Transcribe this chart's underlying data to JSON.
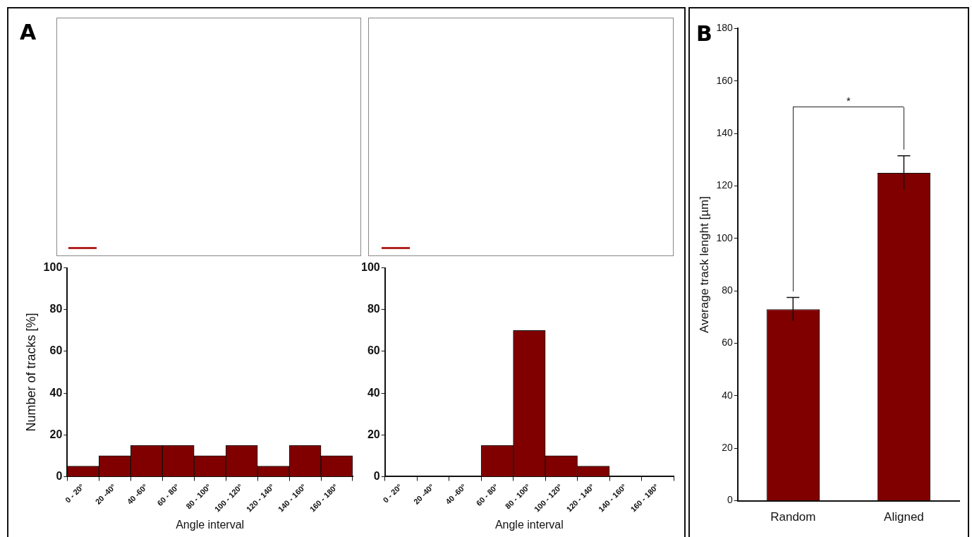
{
  "chart_data": [
    {
      "type": "bar",
      "annotations": [
        "A"
      ],
      "xlabel": "Angle interval",
      "ylabel": "Number of tracks [%]",
      "categories": [
        "0 - 20°",
        "20 -40°",
        "40 -60°",
        "60 - 80°",
        "80 - 100°",
        "100 - 120°",
        "120 - 140°",
        "140 - 160°",
        "160 - 180°"
      ],
      "values": [
        5,
        10,
        15,
        15,
        10,
        15,
        5,
        15,
        10
      ],
      "color": "#800000",
      "ylim": [
        0,
        100
      ],
      "yticks": [
        0,
        20,
        40,
        60,
        80,
        100
      ],
      "grid": false,
      "legend": false
    },
    {
      "type": "bar",
      "xlabel": "Angle interval",
      "categories": [
        "0 - 20°",
        "20 -40°",
        "40 -60°",
        "60 - 80°",
        "80 - 100°",
        "100 - 120°",
        "120 - 140°",
        "140 - 160°",
        "160 - 180°"
      ],
      "values": [
        0,
        0,
        0,
        15,
        70,
        10,
        5,
        0,
        0
      ],
      "color": "#800000",
      "ylim": [
        0,
        100
      ],
      "yticks": [
        0,
        20,
        40,
        60,
        80,
        100
      ],
      "grid": false,
      "legend": false
    },
    {
      "type": "bar",
      "annotations": [
        "B",
        "*"
      ],
      "ylabel": "Average track lenght [µm]",
      "categories": [
        "Random",
        "Aligned"
      ],
      "values": [
        73,
        125
      ],
      "errors": [
        4.5,
        6.5
      ],
      "color": "#800000",
      "ylim": [
        0,
        180
      ],
      "yticks": [
        0,
        20,
        40,
        60,
        80,
        100,
        120,
        140,
        160,
        180
      ],
      "grid": false,
      "legend": false
    }
  ]
}
